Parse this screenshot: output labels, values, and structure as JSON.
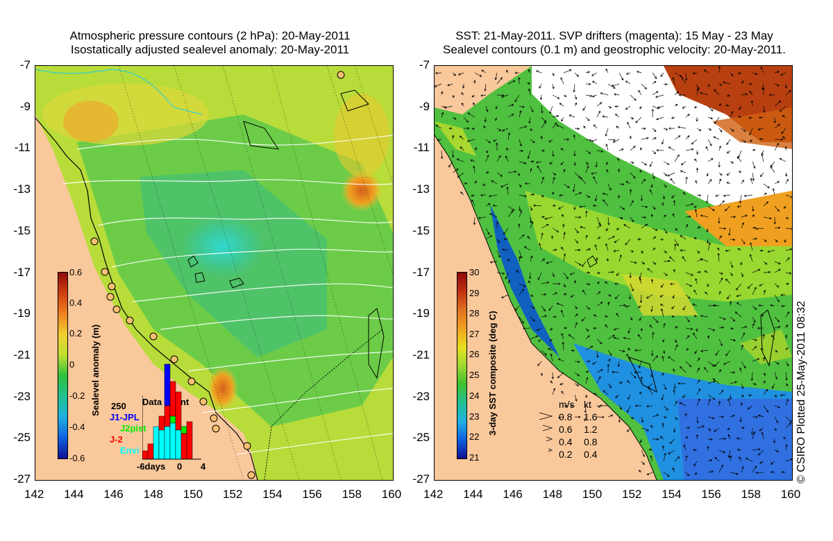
{
  "left_panel": {
    "title_line1": "Atmospheric pressure contours (2 hPa): 20-May-2011",
    "title_line2": "Isostatically adjusted sealevel anomaly: 20-May-2011",
    "colorbar_label": "Sealevel anomaly (m)",
    "colorbar_ticks": [
      "0.6",
      "0.4",
      "0.2",
      "0",
      "-0.2",
      "-0.4",
      "-0.6"
    ],
    "inset": {
      "title": "Data count",
      "ymax": "250",
      "legend": [
        {
          "label": "J1-JPL",
          "color": "#0000ff"
        },
        {
          "label": "J2pist",
          "color": "#00ee00"
        },
        {
          "label": "J-2",
          "color": "#ff0000"
        },
        {
          "label": "Envi",
          "color": "#00ffff"
        }
      ],
      "xticks": [
        "-6days",
        "0",
        "4"
      ]
    }
  },
  "right_panel": {
    "title_line1": "SST: 21-May-2011. SVP drifters (magenta): 15 May - 23 May",
    "title_line2": "Sealevel contours (0.1 m) and geostrophic velocity: 20-May-2011.",
    "colorbar_label": "3-day SST composite (deg C)",
    "colorbar_ticks": [
      "30",
      "29",
      "28",
      "27",
      "26",
      "25",
      "24",
      "23",
      "22",
      "21"
    ],
    "velocity_legend": {
      "header_ms": "m/s",
      "header_kt": "kt",
      "rows": [
        {
          "ms": "0.8",
          "kt": "1.6"
        },
        {
          "ms": "0.6",
          "kt": "1.2"
        },
        {
          "ms": "0.4",
          "kt": "0.8"
        },
        {
          "ms": "0.2",
          "kt": "0.4"
        }
      ]
    }
  },
  "axes": {
    "lat_ticks": [
      "-7",
      "-9",
      "-11",
      "-13",
      "-15",
      "-17",
      "-19",
      "-21",
      "-23",
      "-25",
      "-27"
    ],
    "lon_ticks": [
      "142",
      "144",
      "146",
      "148",
      "150",
      "152",
      "154",
      "156",
      "158",
      "160"
    ]
  },
  "credit": "© CSIRO Plotted 25-May-2011 08:32",
  "colors": {
    "land": "#f9c89b",
    "no_data": "#ffffff"
  }
}
